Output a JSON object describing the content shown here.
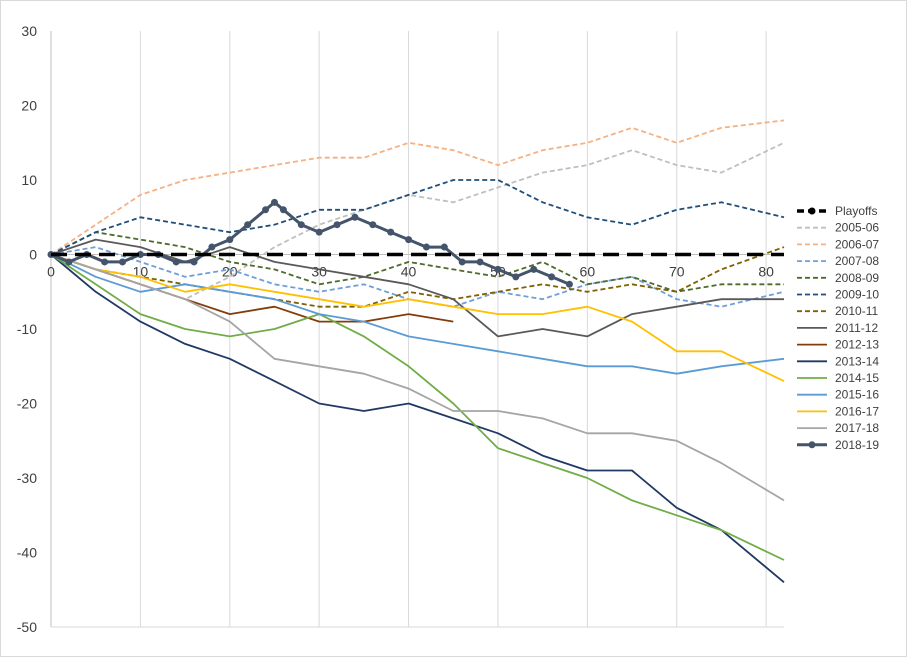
{
  "chart_data": {
    "type": "line",
    "title": "",
    "xlabel": "",
    "ylabel": "",
    "xlim": [
      0,
      82
    ],
    "ylim": [
      -50,
      30
    ],
    "x_ticks": [
      "0",
      "10",
      "20",
      "30",
      "40",
      "50",
      "60",
      "70",
      "80"
    ],
    "y_ticks": [
      "30",
      "20",
      "10",
      "0",
      "-10",
      "-20",
      "-30",
      "-40",
      "-50"
    ],
    "grid": "vertical",
    "legend_position": "right",
    "series": [
      {
        "name": "Playoffs",
        "color": "#000000",
        "style": "dash-thick",
        "points": [
          [
            0,
            0
          ],
          [
            82,
            0
          ]
        ]
      },
      {
        "name": "2005-06",
        "color": "#bfbfbf",
        "style": "dash",
        "points": [
          [
            0,
            0
          ],
          [
            5,
            -2
          ],
          [
            10,
            -4
          ],
          [
            15,
            -6
          ],
          [
            20,
            -3
          ],
          [
            25,
            1
          ],
          [
            30,
            4
          ],
          [
            35,
            6
          ],
          [
            40,
            8
          ],
          [
            45,
            7
          ],
          [
            50,
            9
          ],
          [
            55,
            11
          ],
          [
            60,
            12
          ],
          [
            65,
            14
          ],
          [
            70,
            12
          ],
          [
            75,
            11
          ],
          [
            82,
            15
          ]
        ]
      },
      {
        "name": "2006-07",
        "color": "#f4b183",
        "style": "dash",
        "points": [
          [
            0,
            0
          ],
          [
            5,
            4
          ],
          [
            10,
            8
          ],
          [
            15,
            10
          ],
          [
            20,
            11
          ],
          [
            25,
            12
          ],
          [
            30,
            13
          ],
          [
            35,
            13
          ],
          [
            40,
            15
          ],
          [
            45,
            14
          ],
          [
            50,
            12
          ],
          [
            55,
            14
          ],
          [
            60,
            15
          ],
          [
            65,
            17
          ],
          [
            70,
            15
          ],
          [
            75,
            17
          ],
          [
            82,
            18
          ]
        ]
      },
      {
        "name": "2007-08",
        "color": "#6f9fd8",
        "style": "dash",
        "points": [
          [
            0,
            0
          ],
          [
            5,
            1
          ],
          [
            10,
            -1
          ],
          [
            15,
            -3
          ],
          [
            20,
            -2
          ],
          [
            25,
            -4
          ],
          [
            30,
            -5
          ],
          [
            35,
            -4
          ],
          [
            40,
            -6
          ],
          [
            45,
            -7
          ],
          [
            50,
            -5
          ],
          [
            55,
            -6
          ],
          [
            60,
            -4
          ],
          [
            65,
            -3
          ],
          [
            70,
            -6
          ],
          [
            75,
            -7
          ],
          [
            82,
            -5
          ]
        ]
      },
      {
        "name": "2008-09",
        "color": "#4d6b2a",
        "style": "dash",
        "points": [
          [
            0,
            0
          ],
          [
            5,
            3
          ],
          [
            10,
            2
          ],
          [
            15,
            1
          ],
          [
            20,
            -1
          ],
          [
            25,
            -2
          ],
          [
            30,
            -4
          ],
          [
            35,
            -3
          ],
          [
            40,
            -1
          ],
          [
            45,
            -2
          ],
          [
            50,
            -3
          ],
          [
            55,
            -1
          ],
          [
            60,
            -4
          ],
          [
            65,
            -3
          ],
          [
            70,
            -5
          ],
          [
            75,
            -4
          ],
          [
            82,
            -4
          ]
        ]
      },
      {
        "name": "2009-10",
        "color": "#1f4e79",
        "style": "dash",
        "points": [
          [
            0,
            0
          ],
          [
            5,
            3
          ],
          [
            10,
            5
          ],
          [
            15,
            4
          ],
          [
            20,
            3
          ],
          [
            25,
            4
          ],
          [
            30,
            6
          ],
          [
            35,
            6
          ],
          [
            40,
            8
          ],
          [
            45,
            10
          ],
          [
            50,
            10
          ],
          [
            55,
            7
          ],
          [
            60,
            5
          ],
          [
            65,
            4
          ],
          [
            70,
            6
          ],
          [
            75,
            7
          ],
          [
            82,
            5
          ]
        ]
      },
      {
        "name": "2010-11",
        "color": "#806000",
        "style": "dash",
        "points": [
          [
            0,
            0
          ],
          [
            5,
            -2
          ],
          [
            10,
            -3
          ],
          [
            15,
            -4
          ],
          [
            20,
            -5
          ],
          [
            25,
            -6
          ],
          [
            30,
            -7
          ],
          [
            35,
            -7
          ],
          [
            40,
            -5
          ],
          [
            45,
            -6
          ],
          [
            50,
            -5
          ],
          [
            55,
            -4
          ],
          [
            60,
            -5
          ],
          [
            65,
            -4
          ],
          [
            70,
            -5
          ],
          [
            75,
            -2
          ],
          [
            82,
            1
          ]
        ]
      },
      {
        "name": "2011-12",
        "color": "#595959",
        "style": "solid",
        "points": [
          [
            0,
            0
          ],
          [
            5,
            2
          ],
          [
            10,
            1
          ],
          [
            15,
            -1
          ],
          [
            20,
            1
          ],
          [
            25,
            -1
          ],
          [
            30,
            -2
          ],
          [
            35,
            -3
          ],
          [
            40,
            -4
          ],
          [
            45,
            -6
          ],
          [
            50,
            -11
          ],
          [
            55,
            -10
          ],
          [
            60,
            -11
          ],
          [
            65,
            -8
          ],
          [
            70,
            -7
          ],
          [
            75,
            -6
          ],
          [
            82,
            -6
          ]
        ]
      },
      {
        "name": "2012-13",
        "color": "#843c0c",
        "style": "solid",
        "points": [
          [
            0,
            0
          ],
          [
            5,
            -2
          ],
          [
            10,
            -4
          ],
          [
            15,
            -6
          ],
          [
            20,
            -8
          ],
          [
            25,
            -7
          ],
          [
            30,
            -9
          ],
          [
            35,
            -9
          ],
          [
            40,
            -8
          ],
          [
            45,
            -9
          ]
        ]
      },
      {
        "name": "2013-14",
        "color": "#203864",
        "style": "solid",
        "points": [
          [
            0,
            0
          ],
          [
            5,
            -5
          ],
          [
            10,
            -9
          ],
          [
            15,
            -12
          ],
          [
            20,
            -14
          ],
          [
            25,
            -17
          ],
          [
            30,
            -20
          ],
          [
            35,
            -21
          ],
          [
            40,
            -20
          ],
          [
            45,
            -22
          ],
          [
            50,
            -24
          ],
          [
            55,
            -27
          ],
          [
            60,
            -29
          ],
          [
            65,
            -29
          ],
          [
            70,
            -34
          ],
          [
            75,
            -37
          ],
          [
            82,
            -44
          ]
        ]
      },
      {
        "name": "2014-15",
        "color": "#70ad47",
        "style": "solid",
        "points": [
          [
            0,
            0
          ],
          [
            5,
            -4
          ],
          [
            10,
            -8
          ],
          [
            15,
            -10
          ],
          [
            20,
            -11
          ],
          [
            25,
            -10
          ],
          [
            30,
            -8
          ],
          [
            35,
            -11
          ],
          [
            40,
            -15
          ],
          [
            45,
            -20
          ],
          [
            50,
            -26
          ],
          [
            55,
            -28
          ],
          [
            60,
            -30
          ],
          [
            65,
            -33
          ],
          [
            70,
            -35
          ],
          [
            75,
            -37
          ],
          [
            82,
            -41
          ]
        ]
      },
      {
        "name": "2015-16",
        "color": "#5b9bd5",
        "style": "solid",
        "points": [
          [
            0,
            0
          ],
          [
            5,
            -3
          ],
          [
            10,
            -5
          ],
          [
            15,
            -4
          ],
          [
            20,
            -5
          ],
          [
            25,
            -6
          ],
          [
            30,
            -8
          ],
          [
            35,
            -9
          ],
          [
            40,
            -11
          ],
          [
            45,
            -12
          ],
          [
            50,
            -13
          ],
          [
            55,
            -14
          ],
          [
            60,
            -15
          ],
          [
            65,
            -15
          ],
          [
            70,
            -16
          ],
          [
            75,
            -15
          ],
          [
            82,
            -14
          ]
        ]
      },
      {
        "name": "2016-17",
        "color": "#ffc000",
        "style": "solid",
        "points": [
          [
            0,
            0
          ],
          [
            5,
            -2
          ],
          [
            10,
            -3
          ],
          [
            15,
            -5
          ],
          [
            20,
            -4
          ],
          [
            25,
            -5
          ],
          [
            30,
            -6
          ],
          [
            35,
            -7
          ],
          [
            40,
            -6
          ],
          [
            45,
            -7
          ],
          [
            50,
            -8
          ],
          [
            55,
            -8
          ],
          [
            60,
            -7
          ],
          [
            65,
            -9
          ],
          [
            70,
            -13
          ],
          [
            75,
            -13
          ],
          [
            82,
            -17
          ]
        ]
      },
      {
        "name": "2017-18",
        "color": "#a5a5a5",
        "style": "solid",
        "points": [
          [
            0,
            0
          ],
          [
            5,
            -2
          ],
          [
            10,
            -4
          ],
          [
            15,
            -6
          ],
          [
            20,
            -9
          ],
          [
            25,
            -14
          ],
          [
            30,
            -15
          ],
          [
            35,
            -16
          ],
          [
            40,
            -18
          ],
          [
            45,
            -21
          ],
          [
            50,
            -21
          ],
          [
            55,
            -22
          ],
          [
            60,
            -24
          ],
          [
            65,
            -24
          ],
          [
            70,
            -25
          ],
          [
            75,
            -28
          ],
          [
            82,
            -33
          ]
        ]
      },
      {
        "name": "2018-19",
        "color": "#44546a",
        "style": "marker",
        "points": [
          [
            0,
            0
          ],
          [
            2,
            -1
          ],
          [
            4,
            0
          ],
          [
            6,
            -1
          ],
          [
            8,
            -1
          ],
          [
            10,
            0
          ],
          [
            12,
            0
          ],
          [
            14,
            -1
          ],
          [
            16,
            -1
          ],
          [
            18,
            1
          ],
          [
            20,
            2
          ],
          [
            22,
            4
          ],
          [
            24,
            6
          ],
          [
            25,
            7
          ],
          [
            26,
            6
          ],
          [
            28,
            4
          ],
          [
            30,
            3
          ],
          [
            32,
            4
          ],
          [
            34,
            5
          ],
          [
            36,
            4
          ],
          [
            38,
            3
          ],
          [
            40,
            2
          ],
          [
            42,
            1
          ],
          [
            44,
            1
          ],
          [
            46,
            -1
          ],
          [
            48,
            -1
          ],
          [
            50,
            -2
          ],
          [
            52,
            -3
          ],
          [
            54,
            -2
          ],
          [
            56,
            -3
          ],
          [
            58,
            -4
          ]
        ]
      }
    ]
  }
}
